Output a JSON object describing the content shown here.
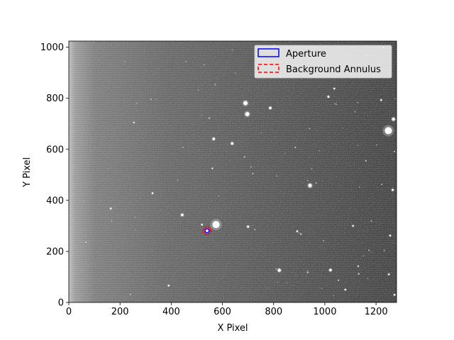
{
  "chart_data": {
    "type": "image",
    "xlabel": "X Pixel",
    "ylabel": "Y Pixel",
    "xlim": [
      0,
      1280
    ],
    "ylim": [
      0,
      1024
    ],
    "xticks": [
      0,
      200,
      400,
      600,
      800,
      1000,
      1200
    ],
    "yticks": [
      0,
      200,
      400,
      600,
      800,
      1000
    ],
    "xtick_labels": [
      "0",
      "200",
      "400",
      "600",
      "800",
      "1000",
      "1200"
    ],
    "ytick_labels": [
      "0",
      "200",
      "400",
      "600",
      "800",
      "1000"
    ],
    "colormap": "gray",
    "legend_placement": "top-right",
    "legend": [
      {
        "label": "Aperture",
        "color": "#0000ff",
        "style": "solid"
      },
      {
        "label": "Background Annulus",
        "color": "#ff0000",
        "style": "dashed"
      }
    ],
    "target": {
      "x": 540,
      "y": 281,
      "aperture_radius": 8,
      "annulus_inner": 11,
      "annulus_outer": 14
    },
    "bright_sources": [
      {
        "x": 575,
        "y": 305,
        "r": 14
      },
      {
        "x": 1248,
        "y": 673,
        "r": 14
      },
      {
        "x": 697,
        "y": 738,
        "r": 8
      },
      {
        "x": 690,
        "y": 781,
        "r": 8
      },
      {
        "x": 566,
        "y": 641,
        "r": 5
      },
      {
        "x": 638,
        "y": 623,
        "r": 5
      },
      {
        "x": 942,
        "y": 458,
        "r": 7
      },
      {
        "x": 443,
        "y": 343,
        "r": 5
      },
      {
        "x": 822,
        "y": 126,
        "r": 6
      },
      {
        "x": 1022,
        "y": 127,
        "r": 5
      },
      {
        "x": 787,
        "y": 762,
        "r": 5
      },
      {
        "x": 1014,
        "y": 806,
        "r": 4
      },
      {
        "x": 1037,
        "y": 838,
        "r": 3
      },
      {
        "x": 1268,
        "y": 718,
        "r": 6
      },
      {
        "x": 1265,
        "y": 441,
        "r": 4
      },
      {
        "x": 1255,
        "y": 262,
        "r": 3
      },
      {
        "x": 700,
        "y": 297,
        "r": 4
      },
      {
        "x": 164,
        "y": 368,
        "r": 3
      },
      {
        "x": 327,
        "y": 428,
        "r": 3
      },
      {
        "x": 1220,
        "y": 793,
        "r": 3
      },
      {
        "x": 520,
        "y": 305,
        "r": 3
      },
      {
        "x": 892,
        "y": 279,
        "r": 3
      },
      {
        "x": 1110,
        "y": 300,
        "r": 2
      },
      {
        "x": 1250,
        "y": 110,
        "r": 2
      },
      {
        "x": 1272,
        "y": 30,
        "r": 3
      },
      {
        "x": 390,
        "y": 66,
        "r": 3
      },
      {
        "x": 1080,
        "y": 50,
        "r": 2
      }
    ]
  }
}
